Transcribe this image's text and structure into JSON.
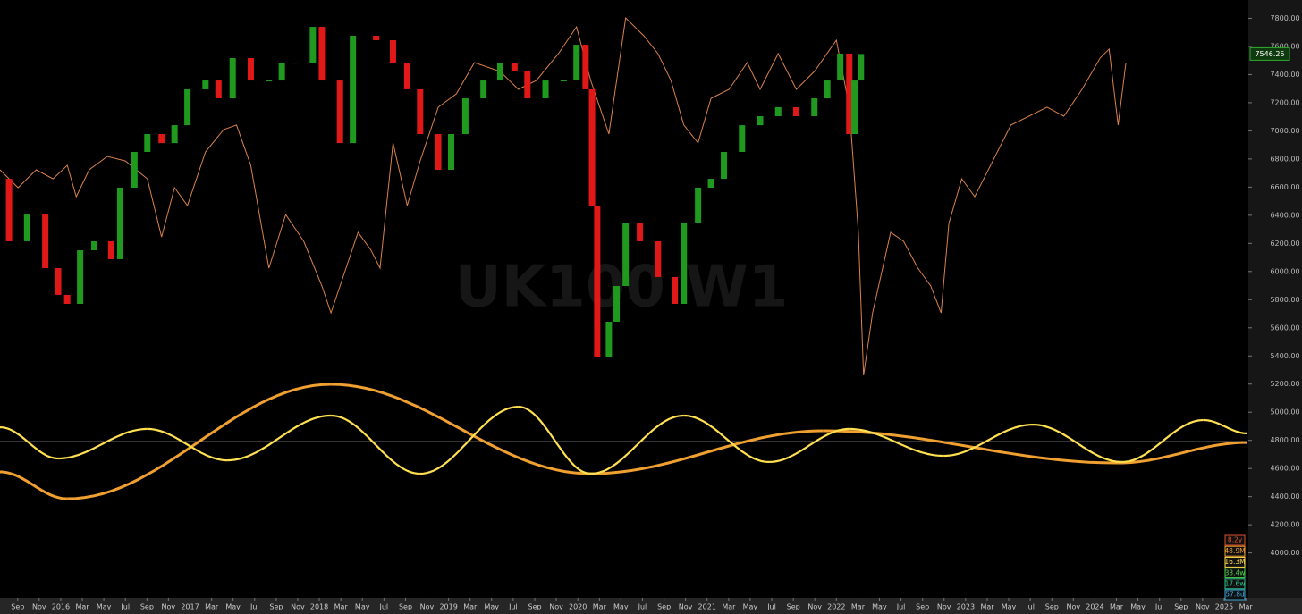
{
  "chart_data": {
    "type": "price-cycles",
    "watermark": "UK100 W1",
    "last_price": 7546.25,
    "xlim": [
      2015.53,
      2025.18
    ],
    "ylim": [
      3680,
      7930
    ],
    "yticks": [
      {
        "value": 4000,
        "label": "4000.00"
      },
      {
        "value": 4200,
        "label": "4200.00"
      },
      {
        "value": 4400,
        "label": "4400.00"
      },
      {
        "value": 4600,
        "label": "4600.00"
      },
      {
        "value": 4800,
        "label": "4800.00"
      },
      {
        "value": 5000,
        "label": "5000.00"
      },
      {
        "value": 5200,
        "label": "5200.00"
      },
      {
        "value": 5400,
        "label": "5400.00"
      },
      {
        "value": 5600,
        "label": "5600.00"
      },
      {
        "value": 5800,
        "label": "5800.00"
      },
      {
        "value": 6000,
        "label": "6000.00"
      },
      {
        "value": 6200,
        "label": "6200.00"
      },
      {
        "value": 6400,
        "label": "6400.00"
      },
      {
        "value": 6600,
        "label": "6600.00"
      },
      {
        "value": 6800,
        "label": "6800.00"
      },
      {
        "value": 7000,
        "label": "7000.00"
      },
      {
        "value": 7200,
        "label": "7200.00"
      },
      {
        "value": 7400,
        "label": "7400.00"
      },
      {
        "value": 7600,
        "label": "7600.00"
      },
      {
        "value": 7800,
        "label": "7800.00"
      }
    ],
    "xticks": [
      {
        "value": 2015.667,
        "label": "Sep"
      },
      {
        "value": 2015.833,
        "label": "Nov"
      },
      2016,
      {
        "value": 2016.167,
        "label": "Mar"
      },
      {
        "value": 2016.333,
        "label": "May"
      },
      {
        "value": 2016.5,
        "label": "Jul"
      },
      {
        "value": 2016.667,
        "label": "Sep"
      },
      {
        "value": 2016.833,
        "label": "Nov"
      },
      2017,
      {
        "value": 2017.167,
        "label": "Mar"
      },
      {
        "value": 2017.333,
        "label": "May"
      },
      {
        "value": 2017.5,
        "label": "Jul"
      },
      {
        "value": 2017.667,
        "label": "Sep"
      },
      {
        "value": 2017.833,
        "label": "Nov"
      },
      2018,
      {
        "value": 2018.167,
        "label": "Mar"
      },
      {
        "value": 2018.333,
        "label": "May"
      },
      {
        "value": 2018.5,
        "label": "Jul"
      },
      {
        "value": 2018.667,
        "label": "Sep"
      },
      {
        "value": 2018.833,
        "label": "Nov"
      },
      2019,
      {
        "value": 2019.167,
        "label": "Mar"
      },
      {
        "value": 2019.333,
        "label": "May"
      },
      {
        "value": 2019.5,
        "label": "Jul"
      },
      {
        "value": 2019.667,
        "label": "Sep"
      },
      {
        "value": 2019.833,
        "label": "Nov"
      },
      2020,
      {
        "value": 2020.167,
        "label": "Mar"
      },
      {
        "value": 2020.333,
        "label": "May"
      },
      {
        "value": 2020.5,
        "label": "Jul"
      },
      {
        "value": 2020.667,
        "label": "Sep"
      },
      {
        "value": 2020.833,
        "label": "Nov"
      },
      2021,
      {
        "value": 2021.167,
        "label": "Mar"
      },
      {
        "value": 2021.333,
        "label": "May"
      },
      {
        "value": 2021.5,
        "label": "Jul"
      },
      {
        "value": 2021.667,
        "label": "Sep"
      },
      {
        "value": 2021.833,
        "label": "Nov"
      },
      2022,
      {
        "value": 2022.167,
        "label": "Mar"
      },
      {
        "value": 2022.333,
        "label": "May"
      },
      {
        "value": 2022.5,
        "label": "Jul"
      },
      {
        "value": 2022.667,
        "label": "Sep"
      },
      {
        "value": 2022.833,
        "label": "Nov"
      },
      2023,
      {
        "value": 2023.167,
        "label": "Mar"
      },
      {
        "value": 2023.333,
        "label": "May"
      },
      {
        "value": 2023.5,
        "label": "Jul"
      },
      {
        "value": 2023.667,
        "label": "Sep"
      },
      {
        "value": 2023.833,
        "label": "Nov"
      },
      2024,
      {
        "value": 2024.167,
        "label": "Mar"
      },
      {
        "value": 2024.333,
        "label": "May"
      },
      {
        "value": 2024.5,
        "label": "Jul"
      },
      {
        "value": 2024.667,
        "label": "Sep"
      },
      {
        "value": 2024.833,
        "label": "Nov"
      },
      2025,
      {
        "value": 2025.167,
        "label": "Mar"
      }
    ],
    "price": {
      "up_color": "#1f9a1f",
      "down_color": "#e01818",
      "x": [
        2015.53,
        2015.6,
        2015.74,
        2015.88,
        2015.98,
        2016.05,
        2016.15,
        2016.26,
        2016.39,
        2016.46,
        2016.57,
        2016.67,
        2016.78,
        2016.88,
        2016.98,
        2017.12,
        2017.22,
        2017.33,
        2017.47,
        2017.61,
        2017.71,
        2017.81,
        2017.95,
        2018.02,
        2018.16,
        2018.26,
        2018.44,
        2018.57,
        2018.68,
        2018.78,
        2018.92,
        2019.02,
        2019.13,
        2019.27,
        2019.4,
        2019.51,
        2019.61,
        2019.75,
        2019.89,
        2019.99,
        2020.06,
        2020.11,
        2020.15,
        2020.24,
        2020.3,
        2020.37,
        2020.48,
        2020.62,
        2020.75,
        2020.82,
        2020.93,
        2021.03,
        2021.13,
        2021.27,
        2021.41,
        2021.55,
        2021.69,
        2021.83,
        2021.93,
        2022.03,
        2022.1,
        2022.14,
        2022.19
      ],
      "values": [
        6659,
        6215,
        6405,
        6024,
        5834,
        5770,
        6151,
        6215,
        6088,
        6596,
        6850,
        6977,
        6913,
        7040,
        7295,
        7358,
        7231,
        7517,
        7358,
        7358,
        7485,
        7485,
        7739,
        7358,
        6913,
        7676,
        7644,
        7485,
        7295,
        6977,
        6723,
        6977,
        7231,
        7358,
        7485,
        7422,
        7231,
        7358,
        7358,
        7612,
        7295,
        6469,
        5389,
        5643,
        5897,
        6342,
        6215,
        5961,
        5770,
        6342,
        6596,
        6659,
        6850,
        7040,
        7104,
        7168,
        7104,
        7231,
        7358,
        7549,
        6977,
        7358,
        7546
      ]
    },
    "projection": {
      "color": "#d9824a",
      "x": [
        2015.53,
        2015.67,
        2015.81,
        2015.94,
        2016.05,
        2016.12,
        2016.22,
        2016.36,
        2016.5,
        2016.67,
        2016.78,
        2016.88,
        2016.98,
        2017.12,
        2017.26,
        2017.36,
        2017.47,
        2017.61,
        2017.74,
        2017.88,
        2018.02,
        2018.09,
        2018.23,
        2018.3,
        2018.4,
        2018.47,
        2018.57,
        2018.68,
        2018.78,
        2018.92,
        2019.06,
        2019.2,
        2019.4,
        2019.54,
        2019.68,
        2019.85,
        2019.99,
        2020.1,
        2020.24,
        2020.37,
        2020.51,
        2020.62,
        2020.72,
        2020.82,
        2020.93,
        2021.03,
        2021.17,
        2021.31,
        2021.41,
        2021.55,
        2021.69,
        2021.83,
        2022.0,
        2022.1,
        2022.17,
        2022.21,
        2022.28,
        2022.42,
        2022.52,
        2022.63,
        2022.73,
        2022.81,
        2022.87,
        2022.97,
        2023.07,
        2023.21,
        2023.35,
        2023.49,
        2023.63,
        2023.76,
        2023.9,
        2024.04,
        2024.11,
        2024.18,
        2024.24
      ],
      "values": [
        6723,
        6596,
        6723,
        6659,
        6755,
        6532,
        6723,
        6818,
        6786,
        6659,
        6246,
        6596,
        6469,
        6850,
        7009,
        7041,
        6755,
        6024,
        6405,
        6215,
        5897,
        5706,
        6088,
        6278,
        6151,
        6024,
        6914,
        6469,
        6786,
        7168,
        7263,
        7485,
        7422,
        7295,
        7358,
        7549,
        7739,
        7358,
        6977,
        7803,
        7676,
        7549,
        7358,
        7041,
        6914,
        7231,
        7295,
        7485,
        7295,
        7549,
        7295,
        7422,
        7644,
        7168,
        6278,
        5262,
        5706,
        6278,
        6215,
        6024,
        5897,
        5706,
        6342,
        6659,
        6532,
        6786,
        7041,
        7104,
        7168,
        7104,
        7295,
        7517,
        7581,
        7041,
        7485
      ]
    },
    "waves": [
      {
        "color": "#f0a030",
        "x": [
          2015.53,
          2016.05,
          2018.09,
          2020.1,
          2021.9,
          2024.18,
          2025.18
        ],
        "values": [
          4576,
          4385,
          5198,
          4563,
          4868,
          4639,
          4785
        ]
      },
      {
        "color": "#ffe050",
        "x": [
          2015.53,
          2015.98,
          2016.67,
          2017.29,
          2018.09,
          2018.78,
          2019.54,
          2020.1,
          2020.82,
          2021.48,
          2022.1,
          2022.83,
          2023.52,
          2024.21,
          2024.84,
          2025.18
        ],
        "values": [
          4893,
          4671,
          4881,
          4658,
          4976,
          4563,
          5039,
          4563,
          4976,
          4646,
          4881,
          4690,
          4912,
          4646,
          4944,
          4849
        ]
      }
    ],
    "hline": 4790,
    "cycle_labels": [
      {
        "label": "8.2y",
        "color": "#e0502a"
      },
      {
        "label": "48.9M",
        "color": "#f0a030"
      },
      {
        "label": "16.3M",
        "color": "#ffe050"
      },
      {
        "label": "33.4w",
        "color": "#4ccc4c"
      },
      {
        "label": "17.6w",
        "color": "#2cc08a"
      },
      {
        "label": "57.8d",
        "color": "#3aa8d8"
      }
    ]
  }
}
